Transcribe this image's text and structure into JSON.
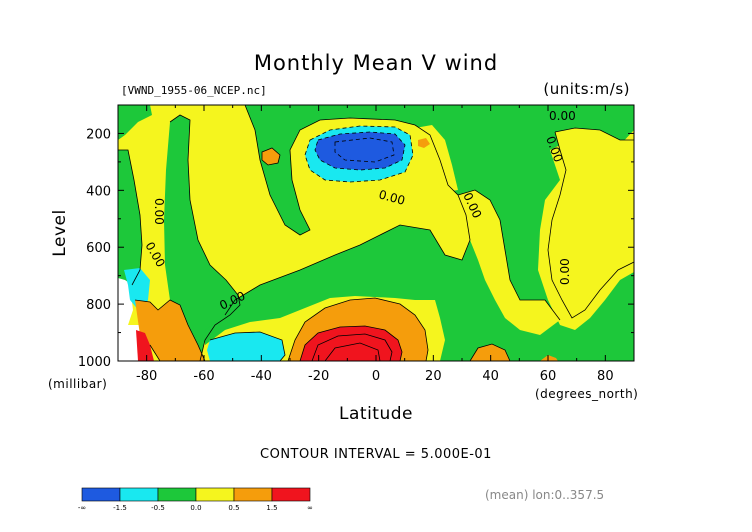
{
  "header": {
    "file_label": "[VWND_1955-06_NCEP.nc]",
    "units": "(units:m/s)"
  },
  "chart_data": {
    "type": "heatmap",
    "title": "Monthly Mean V wind",
    "xlabel": "Latitude",
    "ylabel": "Level",
    "x_unit_label": "(degrees_north)",
    "y_unit_label": "(millibar)",
    "xlim": [
      -90,
      90
    ],
    "ylim": [
      1000,
      100
    ],
    "x_ticks": [
      -80,
      -60,
      -40,
      -20,
      0,
      20,
      40,
      60,
      80
    ],
    "x_tick_labels": [
      "-80",
      "-60",
      "-40",
      "-20",
      "0",
      "20",
      "40",
      "60",
      "80"
    ],
    "y_ticks": [
      200,
      400,
      600,
      800,
      1000
    ],
    "y_tick_labels": [
      "200",
      "400",
      "600",
      "800",
      "1000"
    ],
    "contour_interval_label": "CONTOUR INTERVAL = 5.000E-01",
    "contour_labels": [
      "0.00",
      "0.00",
      "0.00",
      "0.00",
      "0.00",
      "0.00",
      "0.00",
      "0.00",
      "0.00",
      "0.00"
    ],
    "colorbar": {
      "colors": [
        "#1e5ae0",
        "#19e8f0",
        "#1dc83a",
        "#f5f51e",
        "#f59d0c",
        "#f0141e"
      ],
      "bounds": [
        "-∞",
        "-1.5",
        "-0.5",
        "0.0",
        "0.5",
        "1.5",
        "∞"
      ]
    },
    "grid": false,
    "footer": "(mean) lon:0..357.5"
  }
}
